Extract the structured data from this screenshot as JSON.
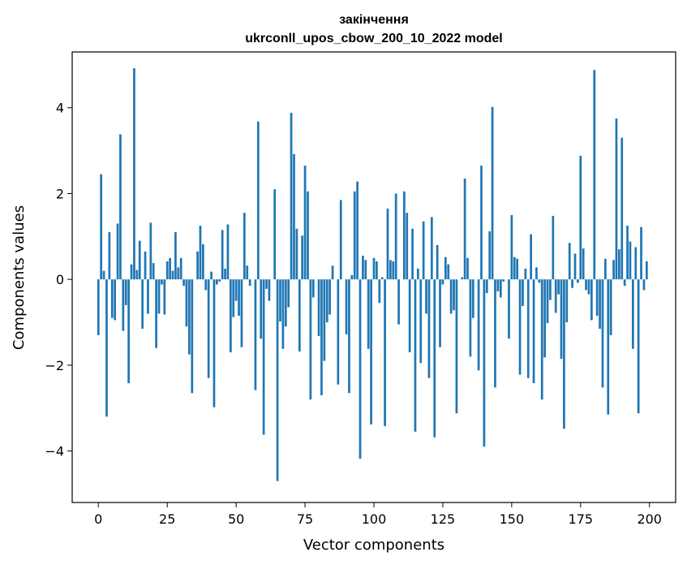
{
  "chart_data": {
    "type": "bar",
    "title": "закінчення",
    "subtitle": "ukrconll_upos_cbow_200_10_2022 model",
    "xlabel": "Vector components",
    "ylabel": "Components values",
    "xlim": [
      -9.5,
      209.5
    ],
    "ylim": [
      -5.2,
      5.3
    ],
    "xticks": [
      0,
      25,
      50,
      75,
      100,
      125,
      150,
      175,
      200
    ],
    "yticks": [
      -4,
      -2,
      0,
      2,
      4
    ],
    "ytick_labels": [
      "−4",
      "−2",
      "0",
      "2",
      "4"
    ],
    "grid": false,
    "bar_color": "#1f77b4",
    "values": [
      -1.3,
      2.45,
      0.2,
      -3.2,
      1.1,
      -0.9,
      -0.95,
      1.3,
      3.38,
      -1.2,
      -0.6,
      -2.42,
      0.35,
      4.92,
      0.22,
      0.9,
      -1.15,
      0.65,
      -0.8,
      1.32,
      0.38,
      -1.6,
      -0.8,
      -0.12,
      -0.82,
      0.42,
      0.5,
      0.2,
      1.1,
      0.28,
      0.5,
      -0.15,
      -1.1,
      -1.75,
      -2.65,
      0.0,
      0.65,
      1.25,
      0.82,
      -0.25,
      -2.3,
      0.18,
      -2.98,
      -0.12,
      -0.05,
      1.15,
      0.25,
      1.28,
      -1.7,
      -0.88,
      -0.5,
      -0.85,
      -1.58,
      1.55,
      0.32,
      -0.15,
      0.0,
      -2.58,
      3.68,
      -1.38,
      -3.62,
      -0.22,
      -0.5,
      0.0,
      2.1,
      -4.7,
      -0.98,
      -1.62,
      -1.1,
      -0.65,
      3.88,
      2.92,
      1.18,
      -1.68,
      1.02,
      2.65,
      2.05,
      -2.8,
      -0.42,
      0.0,
      -1.32,
      -2.7,
      -1.9,
      -1.0,
      -0.82,
      0.32,
      0.0,
      -2.45,
      1.85,
      0.0,
      -1.28,
      -2.65,
      0.1,
      2.05,
      2.28,
      -4.18,
      0.55,
      0.45,
      -1.62,
      -3.38,
      0.5,
      0.42,
      -0.55,
      0.05,
      -3.42,
      1.65,
      0.45,
      0.42,
      2.0,
      -1.05,
      0.0,
      2.05,
      1.55,
      -1.7,
      1.18,
      -3.55,
      0.25,
      -1.95,
      1.35,
      -0.8,
      -2.3,
      1.45,
      -3.68,
      0.8,
      -1.58,
      -0.12,
      0.52,
      0.35,
      -0.8,
      -0.72,
      -3.12,
      0.0,
      0.05,
      2.35,
      0.5,
      -1.8,
      -0.9,
      0.0,
      -2.12,
      2.65,
      -3.9,
      -0.32,
      1.12,
      4.02,
      -2.52,
      -0.28,
      -0.42,
      -0.05,
      0.0,
      -1.38,
      1.5,
      0.52,
      0.48,
      -2.22,
      -0.62,
      0.25,
      -2.3,
      1.05,
      -2.42,
      0.28,
      -0.08,
      -2.8,
      -1.82,
      -1.02,
      -0.48,
      1.48,
      -0.78,
      -0.35,
      -1.85,
      -3.48,
      -1.0,
      0.85,
      -0.2,
      0.6,
      -0.08,
      2.88,
      0.72,
      -0.25,
      -0.35,
      -0.95,
      4.88,
      -0.85,
      -1.15,
      -2.52,
      0.48,
      -3.15,
      -1.3,
      0.45,
      3.75,
      0.7,
      3.3,
      -0.15,
      1.25,
      0.88,
      -1.62,
      0.75,
      -3.12,
      1.22,
      -0.25,
      0.42
    ]
  }
}
